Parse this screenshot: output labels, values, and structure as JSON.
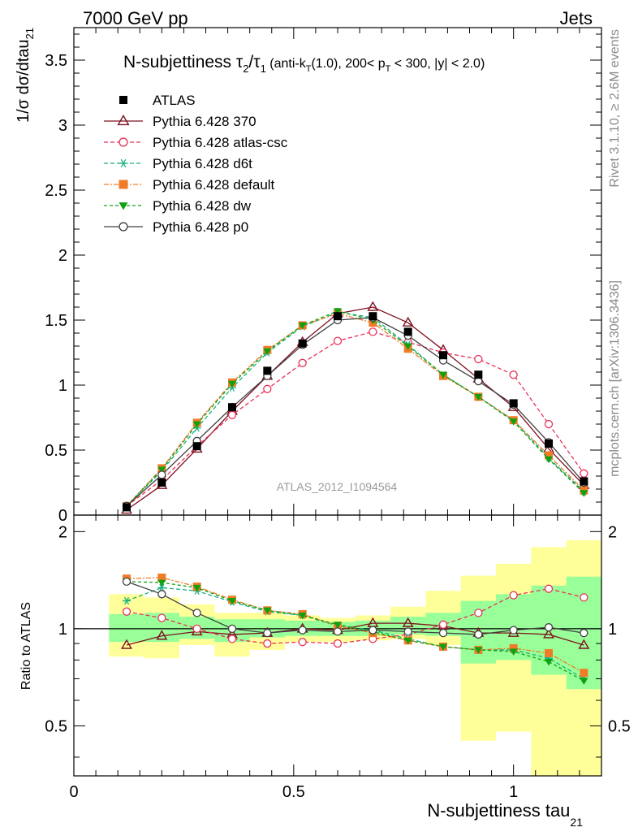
{
  "header": {
    "left": "7000 GeV pp",
    "right": "Jets"
  },
  "side": {
    "rivet": "Rivet 3.1.10, ≥ 2.6M events",
    "mcplots": "mcplots.cern.ch [arXiv:1306.3436]"
  },
  "chart_data": [
    {
      "type": "line",
      "title": {
        "main": "N-subjettiness τ",
        "sub2": "2",
        "slash": "/τ",
        "sub1": "1",
        "cut_a": " (anti-k",
        "cut_b": "T",
        "cut_c": "(1.0), 200< p",
        "cut_d": "T",
        "cut_e": " < 300, |y| < 2.0)"
      },
      "ylabel": {
        "main": "1/σ dσ/dtau",
        "sub": "21"
      },
      "watermark": "ATLAS_2012_I1094564",
      "xlim": [
        0,
        1.2
      ],
      "ylim": [
        0,
        3.75
      ],
      "yticks": [
        {
          "v": 0,
          "label": "0"
        },
        {
          "v": 0.5,
          "label": "0.5"
        },
        {
          "v": 1,
          "label": "1"
        },
        {
          "v": 1.5,
          "label": "1.5"
        },
        {
          "v": 2,
          "label": "2"
        },
        {
          "v": 2.5,
          "label": "2.5"
        },
        {
          "v": 3,
          "label": "3"
        },
        {
          "v": 3.5,
          "label": "3.5"
        }
      ],
      "x": [
        0.12,
        0.2,
        0.28,
        0.36,
        0.44,
        0.52,
        0.6,
        0.68,
        0.76,
        0.84,
        0.92,
        1.0,
        1.08,
        1.16
      ],
      "data": {
        "name": "ATLAS",
        "color": "#000000",
        "values": [
          0.06,
          0.25,
          0.53,
          0.83,
          1.11,
          1.32,
          1.53,
          1.53,
          1.41,
          1.23,
          1.08,
          0.86,
          0.55,
          0.26
        ]
      },
      "series": [
        {
          "name": "Pythia 6.428 370",
          "color": "#7f1020",
          "dash": "",
          "marker": "triangle-open",
          "values": [
            0.04,
            0.23,
            0.51,
            0.8,
            1.07,
            1.33,
            1.55,
            1.6,
            1.48,
            1.27,
            1.05,
            0.83,
            0.51,
            0.23
          ]
        },
        {
          "name": "Pythia 6.428 atlas-csc",
          "color": "#e8325a",
          "dash": "5,3",
          "marker": "circle-open",
          "values": [
            0.07,
            0.27,
            0.53,
            0.77,
            0.97,
            1.17,
            1.34,
            1.41,
            1.33,
            1.25,
            1.2,
            1.08,
            0.7,
            0.32
          ]
        },
        {
          "name": "Pythia 6.428 d6t",
          "color": "#18b080",
          "dash": "5,3",
          "marker": "asterisk",
          "values": [
            0.07,
            0.34,
            0.67,
            0.98,
            1.25,
            1.45,
            1.56,
            1.52,
            1.31,
            1.08,
            0.91,
            0.73,
            0.44,
            0.18
          ]
        },
        {
          "name": "Pythia 6.428 default",
          "color": "#f07c28",
          "dash": "6,2,2,2",
          "marker": "square-filled",
          "values": [
            0.07,
            0.36,
            0.71,
            1.02,
            1.27,
            1.46,
            1.55,
            1.48,
            1.28,
            1.07,
            0.91,
            0.73,
            0.46,
            0.19
          ]
        },
        {
          "name": "Pythia 6.428 dw",
          "color": "#10a010",
          "dash": "4,3",
          "marker": "triangle-down-filled",
          "values": [
            0.07,
            0.35,
            0.7,
            1.01,
            1.26,
            1.46,
            1.57,
            1.5,
            1.3,
            1.08,
            0.91,
            0.72,
            0.43,
            0.17
          ]
        },
        {
          "name": "Pythia 6.428 p0",
          "color": "#404040",
          "dash": "",
          "marker": "circle-open",
          "values": [
            0.07,
            0.31,
            0.57,
            0.83,
            1.07,
            1.31,
            1.5,
            1.52,
            1.38,
            1.19,
            1.03,
            0.85,
            0.56,
            0.25
          ]
        }
      ]
    },
    {
      "type": "line",
      "ylabel": "Ratio to ATLAS",
      "xlabel": {
        "main": "N-subjettiness tau",
        "sub": "21"
      },
      "xlim": [
        0,
        1.2
      ],
      "ylim": [
        0.35,
        2.25
      ],
      "xticks": [
        {
          "v": 0,
          "label": "0"
        },
        {
          "v": 0.5,
          "label": "0.5"
        },
        {
          "v": 1,
          "label": "1"
        }
      ],
      "yticks": [
        {
          "v": 0.5,
          "label": "0.5"
        },
        {
          "v": 1,
          "label": "1"
        },
        {
          "v": 2,
          "label": "2"
        }
      ],
      "bins": [
        [
          0.08,
          0.16
        ],
        [
          0.16,
          0.24
        ],
        [
          0.24,
          0.32
        ],
        [
          0.32,
          0.4
        ],
        [
          0.4,
          0.48
        ],
        [
          0.48,
          0.56
        ],
        [
          0.56,
          0.64
        ],
        [
          0.64,
          0.72
        ],
        [
          0.72,
          0.8
        ],
        [
          0.8,
          0.88
        ],
        [
          0.88,
          0.96
        ],
        [
          0.96,
          1.04
        ],
        [
          1.04,
          1.12
        ],
        [
          1.12,
          1.2
        ]
      ],
      "band_yellow": [
        [
          0.82,
          1.28
        ],
        [
          0.81,
          1.25
        ],
        [
          0.89,
          1.19
        ],
        [
          0.82,
          1.12
        ],
        [
          0.86,
          1.12
        ],
        [
          0.91,
          1.1
        ],
        [
          0.91,
          1.08
        ],
        [
          0.92,
          1.1
        ],
        [
          0.93,
          1.17
        ],
        [
          0.89,
          1.31
        ],
        [
          0.45,
          1.46
        ],
        [
          0.48,
          1.59
        ],
        [
          0.35,
          1.79
        ],
        [
          0.35,
          1.88
        ]
      ],
      "band_green": [
        [
          0.91,
          1.11
        ],
        [
          0.91,
          1.12
        ],
        [
          0.93,
          1.09
        ],
        [
          0.91,
          1.07
        ],
        [
          0.94,
          1.07
        ],
        [
          0.95,
          1.06
        ],
        [
          0.95,
          1.05
        ],
        [
          0.95,
          1.06
        ],
        [
          0.96,
          1.09
        ],
        [
          0.95,
          1.12
        ],
        [
          0.78,
          1.22
        ],
        [
          0.8,
          1.28
        ],
        [
          0.72,
          1.36
        ],
        [
          0.65,
          1.45
        ]
      ],
      "x": [
        0.12,
        0.2,
        0.28,
        0.36,
        0.44,
        0.52,
        0.6,
        0.68,
        0.76,
        0.84,
        0.92,
        1.0,
        1.08,
        1.16
      ],
      "series": [
        {
          "name": "Pythia 6.428 370",
          "values": [
            0.89,
            0.95,
            0.98,
            0.96,
            0.97,
            1.0,
            0.99,
            1.04,
            1.04,
            1.02,
            0.97,
            0.97,
            0.96,
            0.89
          ]
        },
        {
          "name": "Pythia 6.428 atlas-csc",
          "values": [
            1.13,
            1.08,
            1.0,
            0.93,
            0.9,
            0.91,
            0.9,
            0.93,
            0.96,
            1.03,
            1.12,
            1.27,
            1.33,
            1.25
          ]
        },
        {
          "name": "Pythia 6.428 d6t",
          "values": [
            1.22,
            1.34,
            1.31,
            1.21,
            1.13,
            1.1,
            1.02,
            0.99,
            0.93,
            0.88,
            0.86,
            0.86,
            0.81,
            0.7
          ]
        },
        {
          "name": "Pythia 6.428 default",
          "values": [
            1.43,
            1.44,
            1.35,
            1.23,
            1.14,
            1.11,
            1.02,
            0.97,
            0.92,
            0.88,
            0.86,
            0.87,
            0.84,
            0.73
          ]
        },
        {
          "name": "Pythia 6.428 dw",
          "values": [
            1.4,
            1.39,
            1.34,
            1.22,
            1.14,
            1.1,
            1.03,
            0.98,
            0.92,
            0.88,
            0.86,
            0.85,
            0.79,
            0.69
          ]
        },
        {
          "name": "Pythia 6.428 p0",
          "values": [
            1.4,
            1.28,
            1.12,
            1.0,
            0.97,
            0.99,
            0.98,
            0.99,
            0.98,
            0.97,
            0.96,
            0.99,
            1.01,
            0.97
          ]
        }
      ]
    }
  ]
}
